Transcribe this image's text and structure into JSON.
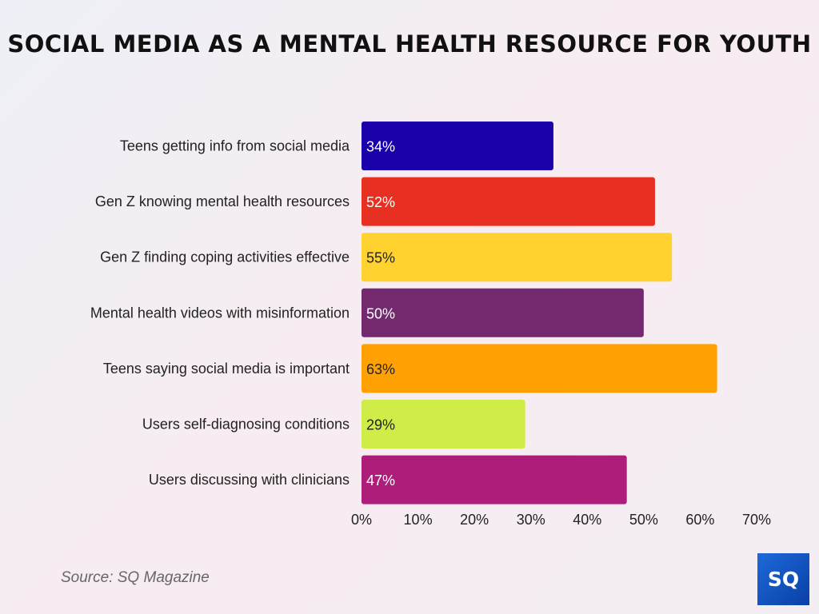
{
  "chart_data": {
    "type": "bar",
    "orientation": "horizontal",
    "title": "SOCIAL MEDIA AS A MENTAL HEALTH RESOURCE FOR YOUTH",
    "categories": [
      "Teens getting info from social media",
      "Gen Z knowing mental health resources",
      "Gen Z finding coping activities effective",
      "Mental health videos with misinformation",
      "Teens saying social media is important",
      "Users self-diagnosing conditions",
      "Users discussing with clinicians"
    ],
    "values": [
      34,
      52,
      55,
      50,
      63,
      29,
      47
    ],
    "data_labels": [
      "34%",
      "52%",
      "55%",
      "50%",
      "63%",
      "29%",
      "47%"
    ],
    "colors": [
      "#1a00a8",
      "#e83022",
      "#ffd230",
      "#72296e",
      "#ffa102",
      "#d0ec48",
      "#ad1e7b"
    ],
    "label_colors": [
      "#ffffff",
      "#ffffff",
      "#222222",
      "#ffffff",
      "#222222",
      "#222222",
      "#ffffff"
    ],
    "xlim": [
      0,
      70
    ],
    "xticks": [
      0,
      10,
      20,
      30,
      40,
      50,
      60,
      70
    ],
    "xtick_labels": [
      "0%",
      "10%",
      "20%",
      "30%",
      "40%",
      "50%",
      "60%",
      "70%"
    ],
    "grid": false,
    "xlabel": "",
    "ylabel": ""
  },
  "source": "Source: SQ Magazine",
  "logo": "SQ"
}
